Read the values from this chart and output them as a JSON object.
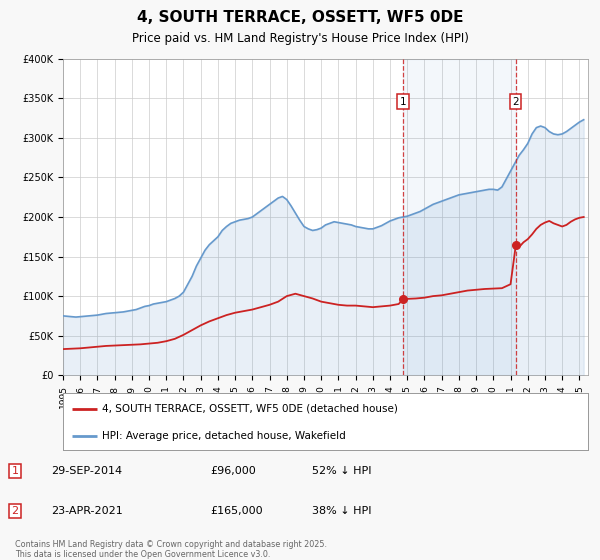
{
  "title": "4, SOUTH TERRACE, OSSETT, WF5 0DE",
  "subtitle": "Price paid vs. HM Land Registry's House Price Index (HPI)",
  "ylim": [
    0,
    400000
  ],
  "yticks": [
    0,
    50000,
    100000,
    150000,
    200000,
    250000,
    300000,
    350000,
    400000
  ],
  "ytick_labels": [
    "£0",
    "£50K",
    "£100K",
    "£150K",
    "£200K",
    "£250K",
    "£300K",
    "£350K",
    "£400K"
  ],
  "xlim_start": 1995.0,
  "xlim_end": 2025.5,
  "hpi_color": "#6699cc",
  "price_color": "#cc2222",
  "marker1_x": 2014.75,
  "marker1_y": 96000,
  "marker2_x": 2021.31,
  "marker2_y": 165000,
  "vline1_x": 2014.75,
  "vline2_x": 2021.31,
  "legend_label_red": "4, SOUTH TERRACE, OSSETT, WF5 0DE (detached house)",
  "legend_label_blue": "HPI: Average price, detached house, Wakefield",
  "annotation1_label": "1",
  "annotation1_date": "29-SEP-2014",
  "annotation1_price": "£96,000",
  "annotation1_hpi": "52% ↓ HPI",
  "annotation2_label": "2",
  "annotation2_date": "23-APR-2021",
  "annotation2_price": "£165,000",
  "annotation2_hpi": "38% ↓ HPI",
  "footer": "Contains HM Land Registry data © Crown copyright and database right 2025.\nThis data is licensed under the Open Government Licence v3.0.",
  "bg_color": "#f8f8f8",
  "plot_bg_color": "#ffffff",
  "title_fontsize": 11,
  "subtitle_fontsize": 9,
  "hpi_data": [
    [
      1995.0,
      75000
    ],
    [
      1995.25,
      74500
    ],
    [
      1995.5,
      74000
    ],
    [
      1995.75,
      73500
    ],
    [
      1996.0,
      74000
    ],
    [
      1996.25,
      74500
    ],
    [
      1996.5,
      75000
    ],
    [
      1996.75,
      75500
    ],
    [
      1997.0,
      76000
    ],
    [
      1997.25,
      77000
    ],
    [
      1997.5,
      78000
    ],
    [
      1997.75,
      78500
    ],
    [
      1998.0,
      79000
    ],
    [
      1998.25,
      79500
    ],
    [
      1998.5,
      80000
    ],
    [
      1998.75,
      81000
    ],
    [
      1999.0,
      82000
    ],
    [
      1999.25,
      83000
    ],
    [
      1999.5,
      85000
    ],
    [
      1999.75,
      87000
    ],
    [
      2000.0,
      88000
    ],
    [
      2000.25,
      90000
    ],
    [
      2000.5,
      91000
    ],
    [
      2000.75,
      92000
    ],
    [
      2001.0,
      93000
    ],
    [
      2001.25,
      95000
    ],
    [
      2001.5,
      97000
    ],
    [
      2001.75,
      100000
    ],
    [
      2002.0,
      105000
    ],
    [
      2002.25,
      115000
    ],
    [
      2002.5,
      125000
    ],
    [
      2002.75,
      138000
    ],
    [
      2003.0,
      148000
    ],
    [
      2003.25,
      158000
    ],
    [
      2003.5,
      165000
    ],
    [
      2003.75,
      170000
    ],
    [
      2004.0,
      175000
    ],
    [
      2004.25,
      183000
    ],
    [
      2004.5,
      188000
    ],
    [
      2004.75,
      192000
    ],
    [
      2005.0,
      194000
    ],
    [
      2005.25,
      196000
    ],
    [
      2005.5,
      197000
    ],
    [
      2005.75,
      198000
    ],
    [
      2006.0,
      200000
    ],
    [
      2006.25,
      204000
    ],
    [
      2006.5,
      208000
    ],
    [
      2006.75,
      212000
    ],
    [
      2007.0,
      216000
    ],
    [
      2007.25,
      220000
    ],
    [
      2007.5,
      224000
    ],
    [
      2007.75,
      226000
    ],
    [
      2008.0,
      222000
    ],
    [
      2008.25,
      214000
    ],
    [
      2008.5,
      205000
    ],
    [
      2008.75,
      196000
    ],
    [
      2009.0,
      188000
    ],
    [
      2009.25,
      185000
    ],
    [
      2009.5,
      183000
    ],
    [
      2009.75,
      184000
    ],
    [
      2010.0,
      186000
    ],
    [
      2010.25,
      190000
    ],
    [
      2010.5,
      192000
    ],
    [
      2010.75,
      194000
    ],
    [
      2011.0,
      193000
    ],
    [
      2011.25,
      192000
    ],
    [
      2011.5,
      191000
    ],
    [
      2011.75,
      190000
    ],
    [
      2012.0,
      188000
    ],
    [
      2012.25,
      187000
    ],
    [
      2012.5,
      186000
    ],
    [
      2012.75,
      185000
    ],
    [
      2013.0,
      185000
    ],
    [
      2013.25,
      187000
    ],
    [
      2013.5,
      189000
    ],
    [
      2013.75,
      192000
    ],
    [
      2014.0,
      195000
    ],
    [
      2014.25,
      197000
    ],
    [
      2014.5,
      199000
    ],
    [
      2014.75,
      200000
    ],
    [
      2015.0,
      201000
    ],
    [
      2015.25,
      203000
    ],
    [
      2015.5,
      205000
    ],
    [
      2015.75,
      207000
    ],
    [
      2016.0,
      210000
    ],
    [
      2016.25,
      213000
    ],
    [
      2016.5,
      216000
    ],
    [
      2016.75,
      218000
    ],
    [
      2017.0,
      220000
    ],
    [
      2017.25,
      222000
    ],
    [
      2017.5,
      224000
    ],
    [
      2017.75,
      226000
    ],
    [
      2018.0,
      228000
    ],
    [
      2018.25,
      229000
    ],
    [
      2018.5,
      230000
    ],
    [
      2018.75,
      231000
    ],
    [
      2019.0,
      232000
    ],
    [
      2019.25,
      233000
    ],
    [
      2019.5,
      234000
    ],
    [
      2019.75,
      235000
    ],
    [
      2020.0,
      235000
    ],
    [
      2020.25,
      234000
    ],
    [
      2020.5,
      238000
    ],
    [
      2020.75,
      248000
    ],
    [
      2021.0,
      258000
    ],
    [
      2021.25,
      268000
    ],
    [
      2021.5,
      278000
    ],
    [
      2021.75,
      285000
    ],
    [
      2022.0,
      293000
    ],
    [
      2022.25,
      305000
    ],
    [
      2022.5,
      313000
    ],
    [
      2022.75,
      315000
    ],
    [
      2023.0,
      313000
    ],
    [
      2023.25,
      308000
    ],
    [
      2023.5,
      305000
    ],
    [
      2023.75,
      304000
    ],
    [
      2024.0,
      305000
    ],
    [
      2024.25,
      308000
    ],
    [
      2024.5,
      312000
    ],
    [
      2024.75,
      316000
    ],
    [
      2025.0,
      320000
    ],
    [
      2025.25,
      323000
    ]
  ],
  "price_data": [
    [
      1995.0,
      33000
    ],
    [
      1995.5,
      33500
    ],
    [
      1996.0,
      34000
    ],
    [
      1996.5,
      35000
    ],
    [
      1997.0,
      36000
    ],
    [
      1997.5,
      37000
    ],
    [
      1998.0,
      37500
    ],
    [
      1998.5,
      38000
    ],
    [
      1999.0,
      38500
    ],
    [
      1999.5,
      39000
    ],
    [
      2000.0,
      40000
    ],
    [
      2000.5,
      41000
    ],
    [
      2001.0,
      43000
    ],
    [
      2001.5,
      46000
    ],
    [
      2002.0,
      51000
    ],
    [
      2002.5,
      57000
    ],
    [
      2003.0,
      63000
    ],
    [
      2003.5,
      68000
    ],
    [
      2004.0,
      72000
    ],
    [
      2004.5,
      76000
    ],
    [
      2005.0,
      79000
    ],
    [
      2005.5,
      81000
    ],
    [
      2006.0,
      83000
    ],
    [
      2006.5,
      86000
    ],
    [
      2007.0,
      89000
    ],
    [
      2007.5,
      93000
    ],
    [
      2008.0,
      100000
    ],
    [
      2008.5,
      103000
    ],
    [
      2009.0,
      100000
    ],
    [
      2009.5,
      97000
    ],
    [
      2010.0,
      93000
    ],
    [
      2010.5,
      91000
    ],
    [
      2011.0,
      89000
    ],
    [
      2011.5,
      88000
    ],
    [
      2012.0,
      88000
    ],
    [
      2012.5,
      87000
    ],
    [
      2013.0,
      86000
    ],
    [
      2013.5,
      87000
    ],
    [
      2014.0,
      88000
    ],
    [
      2014.5,
      90000
    ],
    [
      2014.75,
      96000
    ],
    [
      2015.0,
      96500
    ],
    [
      2015.5,
      97000
    ],
    [
      2016.0,
      98000
    ],
    [
      2016.5,
      100000
    ],
    [
      2017.0,
      101000
    ],
    [
      2017.5,
      103000
    ],
    [
      2018.0,
      105000
    ],
    [
      2018.5,
      107000
    ],
    [
      2019.0,
      108000
    ],
    [
      2019.5,
      109000
    ],
    [
      2020.0,
      109500
    ],
    [
      2020.5,
      110000
    ],
    [
      2021.0,
      115000
    ],
    [
      2021.31,
      165000
    ],
    [
      2021.5,
      162000
    ],
    [
      2021.75,
      168000
    ],
    [
      2022.0,
      172000
    ],
    [
      2022.25,
      178000
    ],
    [
      2022.5,
      185000
    ],
    [
      2022.75,
      190000
    ],
    [
      2023.0,
      193000
    ],
    [
      2023.25,
      195000
    ],
    [
      2023.5,
      192000
    ],
    [
      2023.75,
      190000
    ],
    [
      2024.0,
      188000
    ],
    [
      2024.25,
      190000
    ],
    [
      2024.5,
      194000
    ],
    [
      2024.75,
      197000
    ],
    [
      2025.0,
      199000
    ],
    [
      2025.25,
      200000
    ]
  ]
}
